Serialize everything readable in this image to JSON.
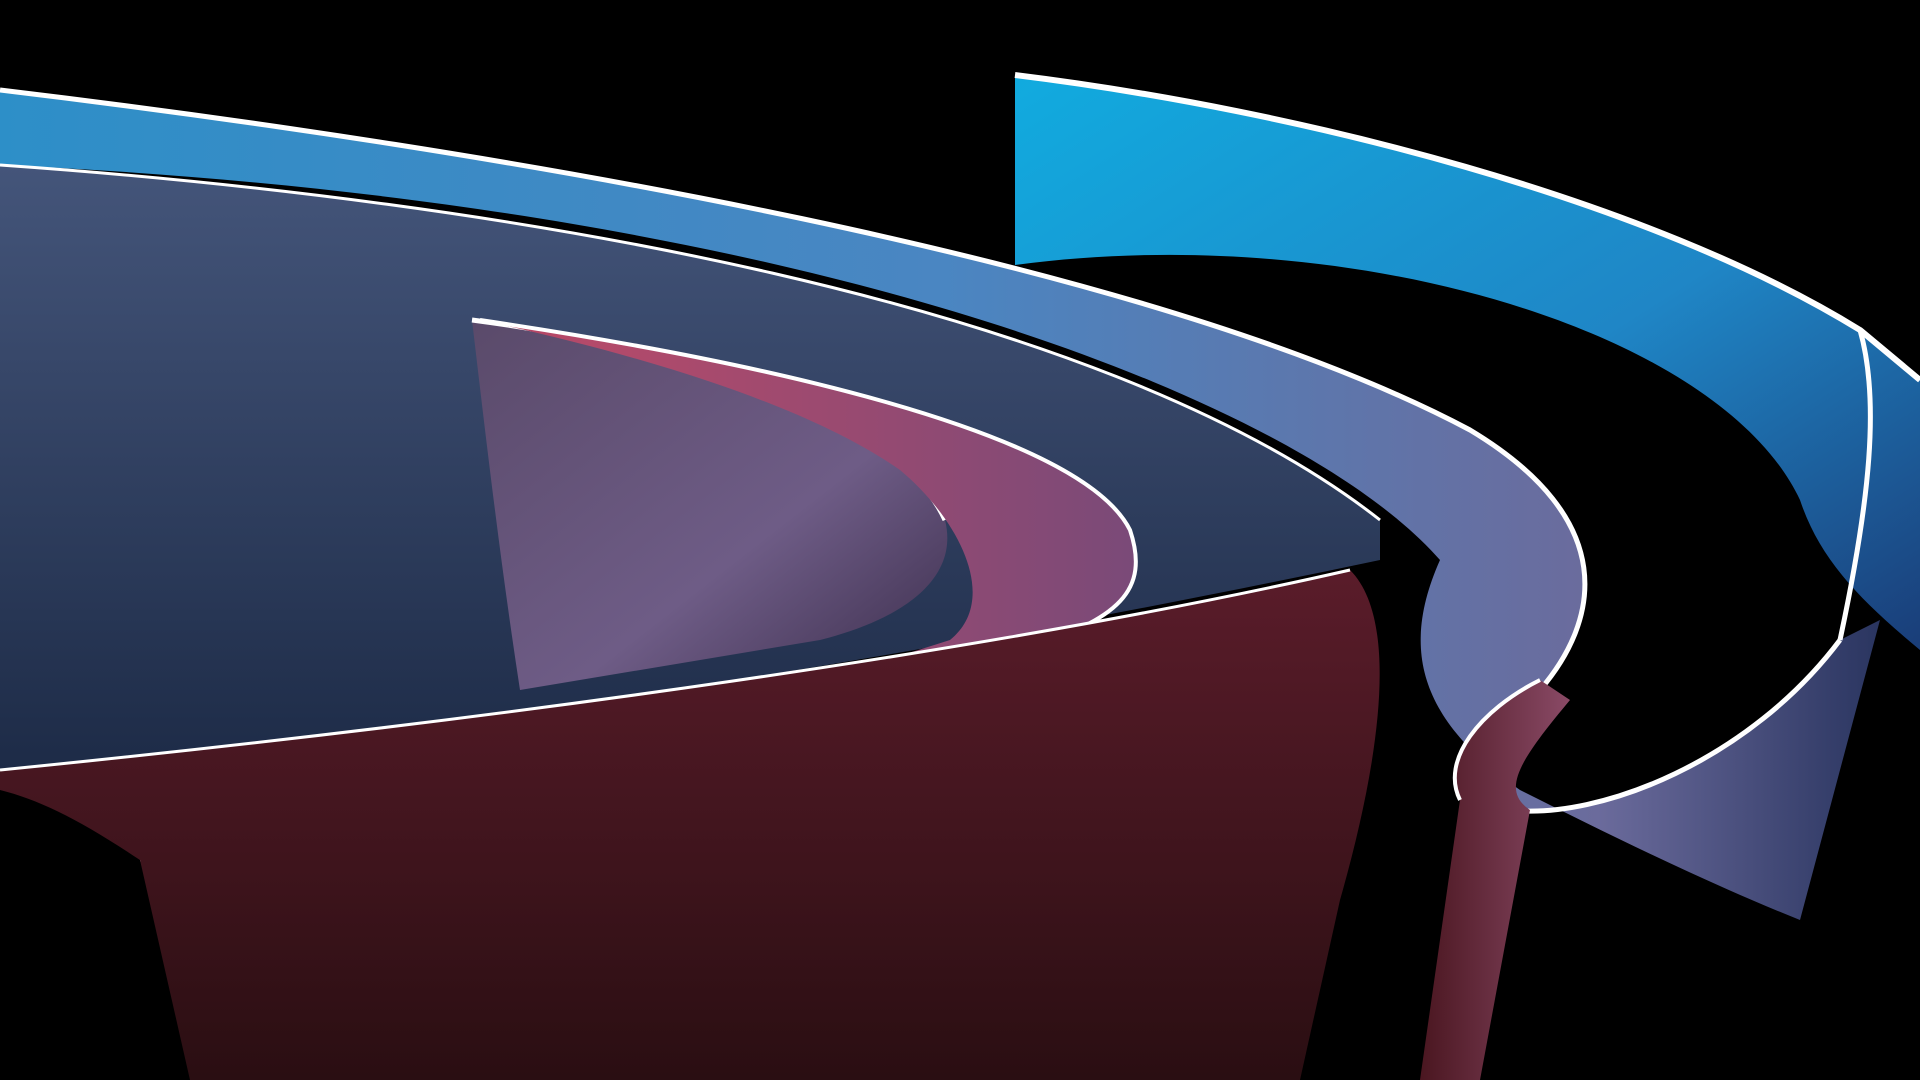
{
  "scene": {
    "subject": "abstract-ribbon-wallpaper",
    "colors": {
      "background": "#000000",
      "ribbon_blue_light": "#11ABDF",
      "ribbon_blue_mid": "#3A86C0",
      "ribbon_slate": "#3A4D6E",
      "ribbon_violet": "#6E5C86",
      "ribbon_pink": "#B44A6A",
      "ribbon_red": "#C22A45",
      "ribbon_dark_red": "#3A1218",
      "edge_highlight": "#FFFFFF"
    }
  }
}
